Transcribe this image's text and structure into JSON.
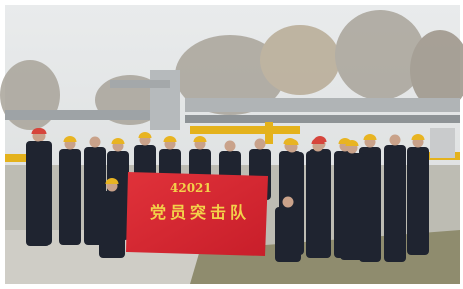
{
  "banner": {
    "line1": "42021",
    "line2": "党员突击队"
  }
}
